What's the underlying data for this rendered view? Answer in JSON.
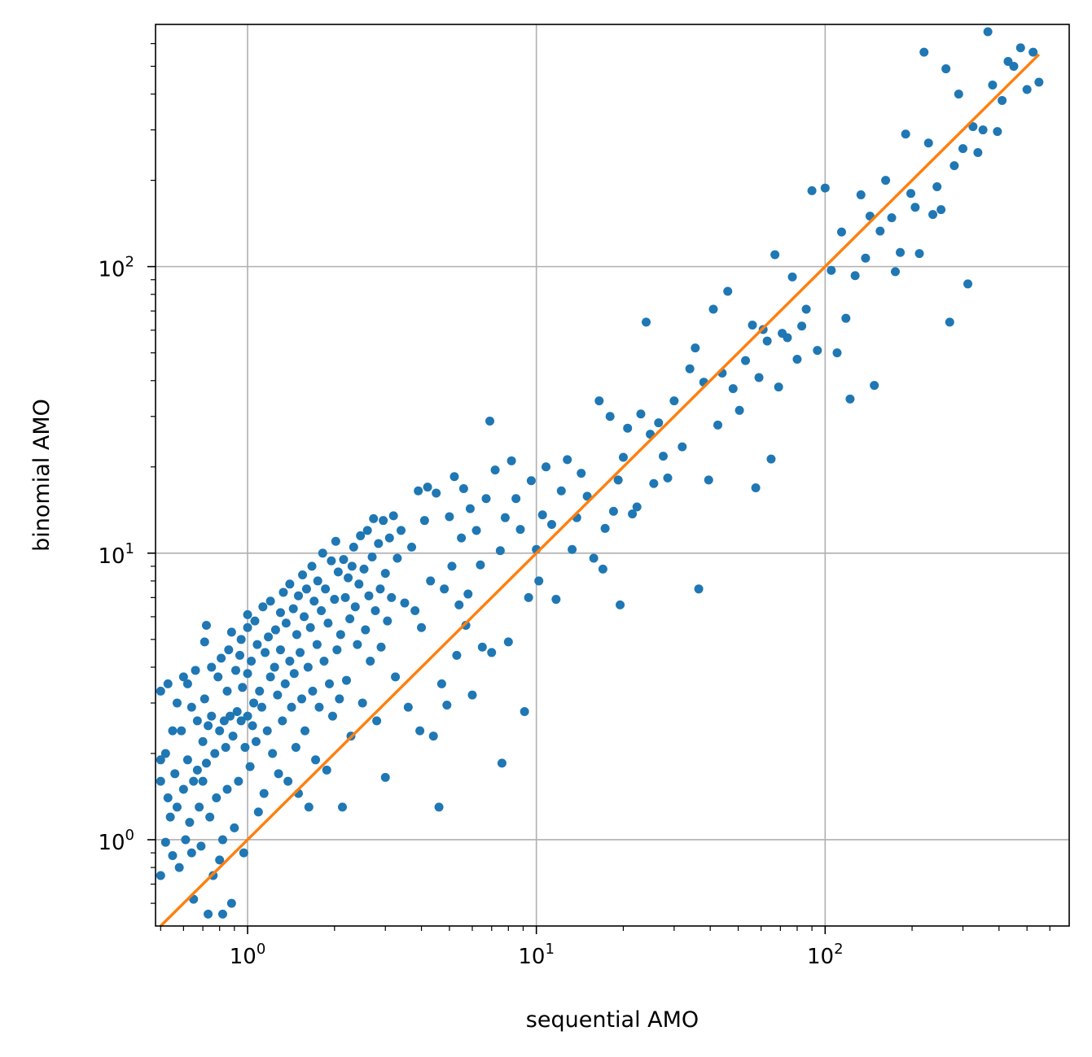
{
  "chart_data": {
    "type": "scatter",
    "title": "",
    "xlabel": "sequential AMO",
    "ylabel": "binomial AMO",
    "xscale": "log",
    "yscale": "log",
    "xlim": [
      0.48,
      700
    ],
    "ylim": [
      0.5,
      700
    ],
    "grid": true,
    "x_ticks": [
      {
        "value": 1,
        "base": "10",
        "exp": "0"
      },
      {
        "value": 10,
        "base": "10",
        "exp": "1"
      },
      {
        "value": 100,
        "base": "10",
        "exp": "2"
      }
    ],
    "y_ticks": [
      {
        "value": 1,
        "base": "10",
        "exp": "0"
      },
      {
        "value": 10,
        "base": "10",
        "exp": "1"
      },
      {
        "value": 100,
        "base": "10",
        "exp": "2"
      }
    ],
    "colors": {
      "points": "#1f77b4",
      "reference_line": "#ff7f0e"
    },
    "reference_line": {
      "x": [
        0.5,
        550
      ],
      "y": [
        0.5,
        550
      ]
    },
    "points": [
      [
        0.5,
        1.9
      ],
      [
        0.5,
        3.3
      ],
      [
        0.5,
        1.6
      ],
      [
        0.5,
        0.75
      ],
      [
        0.52,
        0.98
      ],
      [
        0.52,
        2.0
      ],
      [
        0.53,
        3.5
      ],
      [
        0.53,
        1.4
      ],
      [
        0.54,
        1.2
      ],
      [
        0.55,
        2.4
      ],
      [
        0.55,
        0.88
      ],
      [
        0.56,
        1.7
      ],
      [
        0.57,
        3.0
      ],
      [
        0.57,
        1.3
      ],
      [
        0.58,
        0.8
      ],
      [
        0.59,
        2.4
      ],
      [
        0.6,
        3.7
      ],
      [
        0.6,
        1.5
      ],
      [
        0.61,
        1.0
      ],
      [
        0.62,
        3.5
      ],
      [
        0.62,
        1.9
      ],
      [
        0.63,
        1.15
      ],
      [
        0.64,
        0.9
      ],
      [
        0.64,
        2.9
      ],
      [
        0.65,
        1.6
      ],
      [
        0.65,
        0.62
      ],
      [
        0.66,
        3.9
      ],
      [
        0.67,
        1.75
      ],
      [
        0.67,
        2.6
      ],
      [
        0.68,
        1.3
      ],
      [
        0.69,
        0.95
      ],
      [
        0.7,
        1.6
      ],
      [
        0.7,
        2.2
      ],
      [
        0.71,
        3.1
      ],
      [
        0.71,
        4.9
      ],
      [
        0.72,
        5.6
      ],
      [
        0.72,
        1.85
      ],
      [
        0.73,
        2.5
      ],
      [
        0.73,
        0.55
      ],
      [
        0.74,
        1.2
      ],
      [
        0.75,
        4.0
      ],
      [
        0.75,
        2.7
      ],
      [
        0.76,
        0.75
      ],
      [
        0.77,
        2.0
      ],
      [
        0.78,
        1.4
      ],
      [
        0.79,
        3.7
      ],
      [
        0.8,
        0.85
      ],
      [
        0.8,
        2.4
      ],
      [
        0.81,
        4.3
      ],
      [
        0.82,
        1.0
      ],
      [
        0.82,
        0.55
      ],
      [
        0.83,
        2.6
      ],
      [
        0.84,
        2.1
      ],
      [
        0.85,
        3.3
      ],
      [
        0.85,
        1.5
      ],
      [
        0.86,
        4.6
      ],
      [
        0.87,
        2.7
      ],
      [
        0.88,
        0.6
      ],
      [
        0.88,
        5.3
      ],
      [
        0.89,
        2.3
      ],
      [
        0.9,
        1.1
      ],
      [
        0.91,
        3.9
      ],
      [
        0.92,
        2.8
      ],
      [
        0.93,
        1.6
      ],
      [
        0.94,
        4.4
      ],
      [
        0.95,
        2.6
      ],
      [
        0.95,
        5.0
      ],
      [
        0.96,
        3.4
      ],
      [
        0.97,
        0.9
      ],
      [
        0.98,
        2.1
      ],
      [
        1.0,
        2.7
      ],
      [
        1.0,
        3.8
      ],
      [
        1.0,
        5.5
      ],
      [
        1.0,
        6.1
      ],
      [
        1.02,
        1.8
      ],
      [
        1.03,
        4.2
      ],
      [
        1.04,
        2.5
      ],
      [
        1.05,
        3.0
      ],
      [
        1.06,
        5.8
      ],
      [
        1.07,
        2.2
      ],
      [
        1.08,
        4.8
      ],
      [
        1.09,
        1.25
      ],
      [
        1.1,
        3.3
      ],
      [
        1.12,
        2.9
      ],
      [
        1.13,
        6.5
      ],
      [
        1.14,
        1.45
      ],
      [
        1.15,
        4.5
      ],
      [
        1.17,
        2.4
      ],
      [
        1.18,
        5.1
      ],
      [
        1.2,
        3.7
      ],
      [
        1.2,
        6.8
      ],
      [
        1.22,
        2.0
      ],
      [
        1.24,
        4.0
      ],
      [
        1.25,
        5.4
      ],
      [
        1.27,
        3.2
      ],
      [
        1.28,
        1.7
      ],
      [
        1.3,
        6.2
      ],
      [
        1.3,
        4.6
      ],
      [
        1.32,
        2.6
      ],
      [
        1.33,
        7.3
      ],
      [
        1.35,
        3.5
      ],
      [
        1.36,
        5.7
      ],
      [
        1.38,
        1.6
      ],
      [
        1.4,
        4.2
      ],
      [
        1.4,
        7.8
      ],
      [
        1.42,
        2.9
      ],
      [
        1.44,
        6.4
      ],
      [
        1.45,
        3.8
      ],
      [
        1.47,
        2.1
      ],
      [
        1.48,
        5.2
      ],
      [
        1.5,
        7.1
      ],
      [
        1.5,
        1.45
      ],
      [
        1.52,
        4.5
      ],
      [
        1.54,
        3.1
      ],
      [
        1.55,
        8.4
      ],
      [
        1.57,
        6.0
      ],
      [
        1.58,
        2.4
      ],
      [
        1.6,
        7.5
      ],
      [
        1.62,
        4.0
      ],
      [
        1.63,
        1.3
      ],
      [
        1.65,
        5.5
      ],
      [
        1.67,
        9.0
      ],
      [
        1.68,
        3.3
      ],
      [
        1.7,
        6.8
      ],
      [
        1.72,
        1.9
      ],
      [
        1.74,
        4.8
      ],
      [
        1.75,
        8.0
      ],
      [
        1.77,
        2.9
      ],
      [
        1.8,
        6.3
      ],
      [
        1.82,
        10.0
      ],
      [
        1.84,
        4.2
      ],
      [
        1.86,
        7.5
      ],
      [
        1.88,
        1.75
      ],
      [
        1.9,
        5.7
      ],
      [
        1.92,
        3.5
      ],
      [
        1.95,
        9.4
      ],
      [
        1.97,
        2.7
      ],
      [
        2.0,
        6.9
      ],
      [
        2.02,
        11.0
      ],
      [
        2.04,
        4.6
      ],
      [
        2.06,
        8.6
      ],
      [
        2.08,
        3.1
      ],
      [
        2.1,
        5.2
      ],
      [
        2.13,
        1.3
      ],
      [
        2.15,
        9.5
      ],
      [
        2.18,
        7.0
      ],
      [
        2.2,
        3.6
      ],
      [
        2.23,
        8.2
      ],
      [
        2.26,
        5.9
      ],
      [
        2.28,
        2.3
      ],
      [
        2.3,
        9.0
      ],
      [
        2.33,
        10.5
      ],
      [
        2.36,
        6.5
      ],
      [
        2.4,
        4.8
      ],
      [
        2.43,
        7.8
      ],
      [
        2.46,
        11.5
      ],
      [
        2.5,
        3.0
      ],
      [
        2.53,
        8.8
      ],
      [
        2.56,
        5.4
      ],
      [
        2.6,
        12.0
      ],
      [
        2.63,
        7.1
      ],
      [
        2.66,
        4.2
      ],
      [
        2.7,
        9.7
      ],
      [
        2.73,
        13.2
      ],
      [
        2.77,
        6.3
      ],
      [
        2.8,
        2.6
      ],
      [
        2.84,
        10.8
      ],
      [
        2.88,
        7.5
      ],
      [
        2.9,
        4.7
      ],
      [
        2.95,
        13.0
      ],
      [
        3.0,
        1.65
      ],
      [
        3.0,
        8.5
      ],
      [
        3.05,
        5.8
      ],
      [
        3.1,
        11.3
      ],
      [
        3.15,
        7.0
      ],
      [
        3.2,
        13.5
      ],
      [
        3.25,
        3.7
      ],
      [
        3.3,
        9.6
      ],
      [
        3.4,
        12.0
      ],
      [
        3.5,
        6.7
      ],
      [
        3.6,
        2.9
      ],
      [
        3.7,
        10.5
      ],
      [
        3.8,
        6.3
      ],
      [
        3.9,
        16.5
      ],
      [
        3.95,
        2.4
      ],
      [
        4.0,
        5.5
      ],
      [
        4.1,
        13.0
      ],
      [
        4.2,
        17.0
      ],
      [
        4.3,
        8.0
      ],
      [
        4.4,
        2.3
      ],
      [
        4.5,
        16.2
      ],
      [
        4.6,
        1.3
      ],
      [
        4.7,
        3.5
      ],
      [
        4.8,
        7.5
      ],
      [
        4.9,
        2.95
      ],
      [
        5.0,
        13.4
      ],
      [
        5.1,
        9.0
      ],
      [
        5.2,
        18.5
      ],
      [
        5.3,
        4.4
      ],
      [
        5.4,
        6.6
      ],
      [
        5.5,
        11.3
      ],
      [
        5.6,
        16.8
      ],
      [
        5.7,
        5.6
      ],
      [
        5.8,
        7.2
      ],
      [
        5.9,
        14.3
      ],
      [
        6.0,
        3.2
      ],
      [
        6.2,
        12.0
      ],
      [
        6.4,
        9.1
      ],
      [
        6.5,
        4.7
      ],
      [
        6.7,
        15.5
      ],
      [
        6.9,
        28.9
      ],
      [
        7.0,
        4.5
      ],
      [
        7.2,
        19.5
      ],
      [
        7.5,
        10.2
      ],
      [
        7.6,
        1.85
      ],
      [
        7.8,
        13.3
      ],
      [
        8.0,
        4.9
      ],
      [
        8.2,
        21.0
      ],
      [
        8.5,
        15.5
      ],
      [
        8.8,
        12.1
      ],
      [
        9.1,
        2.8
      ],
      [
        9.4,
        7.0
      ],
      [
        9.6,
        17.9
      ],
      [
        10.0,
        10.3
      ],
      [
        10.2,
        8.0
      ],
      [
        10.5,
        13.6
      ],
      [
        10.8,
        20.0
      ],
      [
        11.3,
        12.6
      ],
      [
        11.7,
        6.9
      ],
      [
        12.2,
        16.5
      ],
      [
        12.8,
        21.2
      ],
      [
        13.3,
        10.3
      ],
      [
        13.8,
        13.3
      ],
      [
        14.3,
        19.0
      ],
      [
        15.0,
        15.8
      ],
      [
        15.8,
        9.6
      ],
      [
        16.5,
        34.0
      ],
      [
        17.0,
        8.8
      ],
      [
        17.3,
        12.2
      ],
      [
        18.0,
        30.0
      ],
      [
        18.5,
        14.0
      ],
      [
        19.2,
        18.0
      ],
      [
        19.5,
        6.6
      ],
      [
        20.0,
        21.6
      ],
      [
        20.7,
        27.3
      ],
      [
        21.5,
        13.7
      ],
      [
        22.3,
        14.5
      ],
      [
        23.0,
        30.6
      ],
      [
        24.0,
        64.0
      ],
      [
        24.8,
        26.0
      ],
      [
        25.5,
        17.5
      ],
      [
        26.5,
        28.5
      ],
      [
        27.5,
        21.8
      ],
      [
        28.5,
        18.3
      ],
      [
        30.0,
        34.0
      ],
      [
        32.0,
        23.5
      ],
      [
        34.0,
        44.0
      ],
      [
        35.5,
        52.0
      ],
      [
        36.5,
        7.5
      ],
      [
        38.0,
        39.5
      ],
      [
        39.5,
        18.0
      ],
      [
        41.0,
        71.0
      ],
      [
        42.5,
        28.0
      ],
      [
        44.0,
        42.5
      ],
      [
        46.0,
        82.0
      ],
      [
        48.0,
        37.5
      ],
      [
        50.5,
        31.5
      ],
      [
        53.0,
        47.0
      ],
      [
        56.0,
        62.5
      ],
      [
        57.5,
        16.9
      ],
      [
        59.0,
        41.0
      ],
      [
        61.0,
        60.3
      ],
      [
        63.0,
        55.0
      ],
      [
        65.0,
        21.3
      ],
      [
        67.0,
        110.0
      ],
      [
        69.0,
        38.0
      ],
      [
        71.0,
        58.5
      ],
      [
        74.0,
        56.5
      ],
      [
        77.0,
        92.0
      ],
      [
        80.0,
        47.5
      ],
      [
        83.0,
        62.0
      ],
      [
        86.0,
        71.0
      ],
      [
        90.0,
        184.0
      ],
      [
        94.0,
        51.0
      ],
      [
        100.0,
        188.0
      ],
      [
        105.0,
        97.0
      ],
      [
        110.0,
        50.0
      ],
      [
        114.0,
        132.0
      ],
      [
        118.0,
        66.0
      ],
      [
        122.0,
        34.5
      ],
      [
        127.0,
        93.0
      ],
      [
        133.0,
        178.0
      ],
      [
        138.0,
        107.0
      ],
      [
        143.0,
        150.0
      ],
      [
        148.0,
        38.5
      ],
      [
        155.0,
        133.0
      ],
      [
        162.0,
        200.0
      ],
      [
        170.0,
        148.0
      ],
      [
        175.0,
        96.0
      ],
      [
        182.0,
        112.0
      ],
      [
        190.0,
        290.0
      ],
      [
        198.0,
        180.0
      ],
      [
        205.0,
        161.0
      ],
      [
        212.0,
        111.0
      ],
      [
        220.0,
        560.0
      ],
      [
        228.0,
        270.0
      ],
      [
        236.0,
        152.0
      ],
      [
        244.0,
        190.0
      ],
      [
        252.0,
        158.0
      ],
      [
        262.0,
        490.0
      ],
      [
        270.0,
        64.0
      ],
      [
        280.0,
        225.0
      ],
      [
        290.0,
        400.0
      ],
      [
        300.0,
        258.0
      ],
      [
        312.0,
        87.0
      ],
      [
        325.0,
        308.0
      ],
      [
        338.0,
        250.0
      ],
      [
        352.0,
        300.0
      ],
      [
        366.0,
        660.0
      ],
      [
        380.0,
        430.0
      ],
      [
        395.0,
        296.0
      ],
      [
        410.0,
        380.0
      ],
      [
        430.0,
        520.0
      ],
      [
        450.0,
        500.0
      ],
      [
        475.0,
        580.0
      ],
      [
        500.0,
        415.0
      ],
      [
        525.0,
        560.0
      ],
      [
        550.0,
        440.0
      ]
    ]
  }
}
